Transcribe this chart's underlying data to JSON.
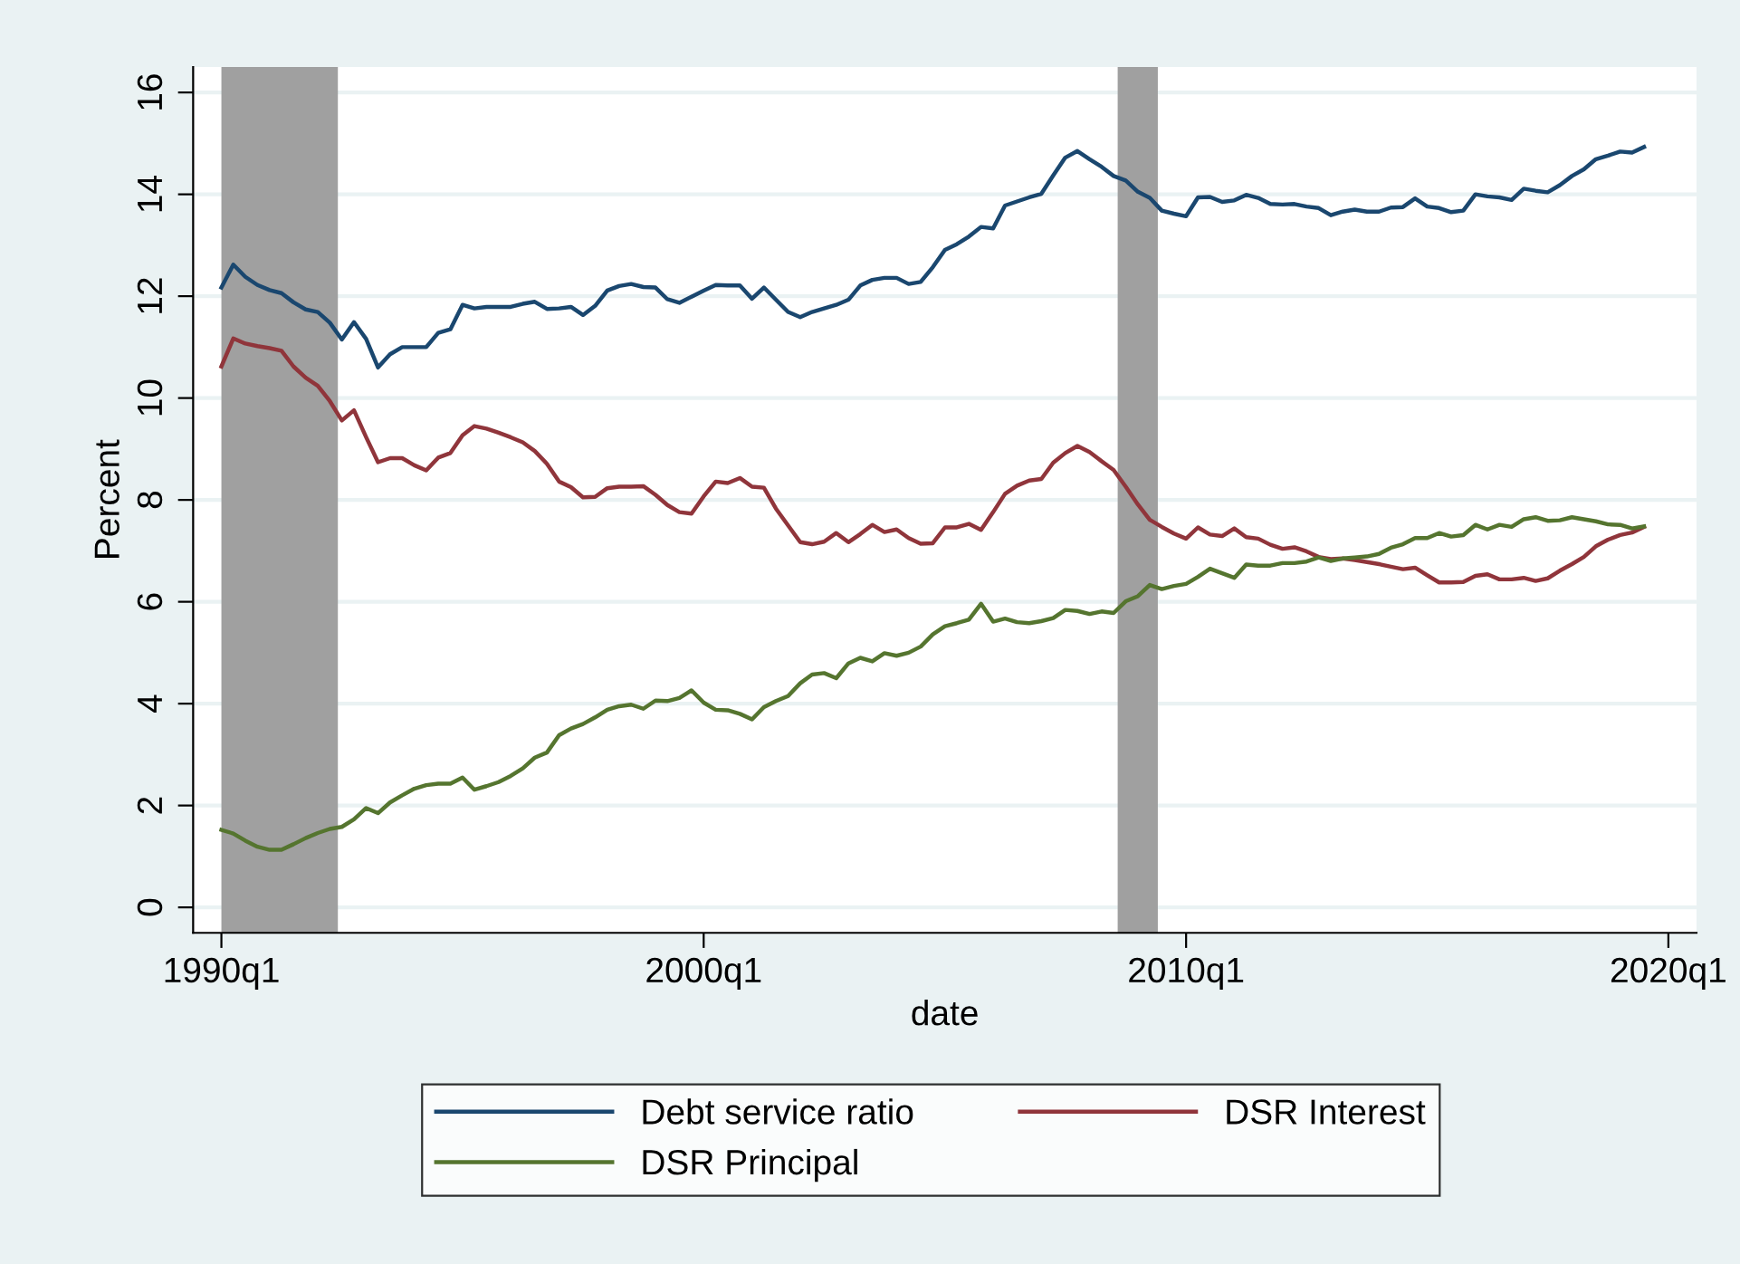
{
  "chart_data": {
    "type": "line",
    "xlabel": "date",
    "ylabel": "Percent",
    "x": [
      "1990-01",
      "1990-04",
      "1990-07",
      "1990-10",
      "1991-01",
      "1991-04",
      "1991-07",
      "1991-10",
      "1992-01",
      "1992-04",
      "1992-07",
      "1992-10",
      "1993-01",
      "1993-04",
      "1993-07",
      "1993-10",
      "1994-01",
      "1994-04",
      "1994-07",
      "1994-10",
      "1995-01",
      "1995-04",
      "1995-07",
      "1995-10",
      "1996-01",
      "1996-04",
      "1996-07",
      "1996-10",
      "1997-01",
      "1997-04",
      "1997-07",
      "1997-10",
      "1998-01",
      "1998-04",
      "1998-07",
      "1998-10",
      "1999-01",
      "1999-04",
      "1999-07",
      "1999-10",
      "2000-01",
      "2000-04",
      "2000-07",
      "2000-10",
      "2001-01",
      "2001-04",
      "2001-07",
      "2001-10",
      "2002-01",
      "2002-04",
      "2002-07",
      "2002-10",
      "2003-01",
      "2003-04",
      "2003-07",
      "2003-10",
      "2004-01",
      "2004-04",
      "2004-07",
      "2004-10",
      "2005-01",
      "2005-04",
      "2005-07",
      "2005-10",
      "2006-01",
      "2006-04",
      "2006-07",
      "2006-10",
      "2007-01",
      "2007-04",
      "2007-07",
      "2007-10",
      "2008-01",
      "2008-04",
      "2008-07",
      "2008-10",
      "2009-01",
      "2009-04",
      "2009-07",
      "2009-10",
      "2010-01",
      "2010-04",
      "2010-07",
      "2010-10",
      "2011-01",
      "2011-04",
      "2011-07",
      "2011-10",
      "2012-01",
      "2012-04",
      "2012-07",
      "2012-10",
      "2013-01",
      "2013-04",
      "2013-07",
      "2013-10",
      "2014-01",
      "2014-04",
      "2014-07",
      "2014-10",
      "2015-01",
      "2015-04",
      "2015-07",
      "2015-10",
      "2016-01",
      "2016-04",
      "2016-07",
      "2016-10",
      "2017-01",
      "2017-04",
      "2017-07",
      "2017-10",
      "2018-01",
      "2018-04",
      "2018-07",
      "2018-10",
      "2019-01",
      "2019-04",
      "2019-07"
    ],
    "series": [
      {
        "name": "Debt service ratio",
        "color": "#1a476f",
        "values": [
          12.17,
          12.62,
          12.38,
          12.22,
          12.12,
          12.06,
          11.88,
          11.74,
          11.69,
          11.48,
          11.15,
          11.49,
          11.16,
          10.6,
          10.86,
          11.0,
          11.0,
          11.0,
          11.28,
          11.35,
          11.83,
          11.76,
          11.79,
          11.79,
          11.79,
          11.85,
          11.89,
          11.75,
          11.76,
          11.79,
          11.63,
          11.81,
          12.11,
          12.2,
          12.24,
          12.18,
          12.17,
          11.94,
          11.87,
          11.99,
          12.11,
          12.22,
          12.21,
          12.21,
          11.95,
          12.17,
          11.93,
          11.69,
          11.59,
          11.69,
          11.76,
          11.83,
          11.93,
          12.21,
          12.32,
          12.36,
          12.36,
          12.24,
          12.28,
          12.57,
          12.91,
          13.02,
          13.17,
          13.36,
          13.33,
          13.78,
          13.86,
          13.94,
          14.01,
          14.37,
          14.72,
          14.85,
          14.69,
          14.54,
          14.36,
          14.27,
          14.05,
          13.93,
          13.68,
          13.62,
          13.57,
          13.94,
          13.95,
          13.85,
          13.88,
          13.99,
          13.93,
          13.81,
          13.8,
          13.81,
          13.76,
          13.73,
          13.59,
          13.66,
          13.7,
          13.66,
          13.66,
          13.74,
          13.75,
          13.92,
          13.76,
          13.73,
          13.65,
          13.68,
          14.0,
          13.96,
          13.94,
          13.89,
          14.11,
          14.07,
          14.04,
          14.18,
          14.36,
          14.49,
          14.69,
          14.76,
          14.84,
          14.82,
          14.93
        ]
      },
      {
        "name": "DSR Interest",
        "color": "#90353b",
        "values": [
          10.62,
          11.17,
          11.07,
          11.02,
          10.98,
          10.93,
          10.62,
          10.4,
          10.24,
          9.94,
          9.56,
          9.76,
          9.23,
          8.74,
          8.82,
          8.82,
          8.68,
          8.58,
          8.83,
          8.92,
          9.27,
          9.45,
          9.4,
          9.32,
          9.23,
          9.13,
          8.96,
          8.71,
          8.36,
          8.25,
          8.05,
          8.06,
          8.23,
          8.26,
          8.26,
          8.27,
          8.1,
          7.9,
          7.76,
          7.73,
          8.07,
          8.36,
          8.33,
          8.43,
          8.26,
          8.24,
          7.83,
          7.5,
          7.17,
          7.13,
          7.18,
          7.35,
          7.17,
          7.33,
          7.51,
          7.37,
          7.42,
          7.25,
          7.14,
          7.15,
          7.46,
          7.46,
          7.53,
          7.41,
          7.76,
          8.12,
          8.28,
          8.38,
          8.41,
          8.73,
          8.92,
          9.06,
          8.94,
          8.76,
          8.59,
          8.26,
          7.91,
          7.61,
          7.47,
          7.34,
          7.24,
          7.46,
          7.32,
          7.29,
          7.44,
          7.27,
          7.24,
          7.12,
          7.04,
          7.07,
          6.99,
          6.88,
          6.84,
          6.85,
          6.82,
          6.78,
          6.74,
          6.69,
          6.64,
          6.67,
          6.52,
          6.38,
          6.38,
          6.39,
          6.51,
          6.54,
          6.44,
          6.44,
          6.47,
          6.41,
          6.46,
          6.61,
          6.74,
          6.88,
          7.09,
          7.22,
          7.31,
          7.36,
          7.47
        ]
      },
      {
        "name": "DSR Principal",
        "color": "#55752f",
        "values": [
          1.52,
          1.45,
          1.31,
          1.19,
          1.13,
          1.13,
          1.24,
          1.36,
          1.46,
          1.54,
          1.58,
          1.73,
          1.95,
          1.85,
          2.06,
          2.2,
          2.33,
          2.4,
          2.43,
          2.43,
          2.55,
          2.31,
          2.38,
          2.46,
          2.58,
          2.73,
          2.94,
          3.04,
          3.38,
          3.51,
          3.6,
          3.73,
          3.88,
          3.95,
          3.98,
          3.9,
          4.06,
          4.05,
          4.11,
          4.26,
          4.02,
          3.88,
          3.87,
          3.8,
          3.69,
          3.93,
          4.05,
          4.15,
          4.4,
          4.57,
          4.6,
          4.5,
          4.79,
          4.9,
          4.83,
          4.99,
          4.94,
          5.0,
          5.12,
          5.36,
          5.52,
          5.58,
          5.65,
          5.96,
          5.61,
          5.67,
          5.6,
          5.58,
          5.62,
          5.68,
          5.84,
          5.82,
          5.76,
          5.81,
          5.78,
          6.01,
          6.11,
          6.33,
          6.25,
          6.31,
          6.35,
          6.49,
          6.65,
          6.56,
          6.47,
          6.73,
          6.71,
          6.71,
          6.76,
          6.76,
          6.79,
          6.87,
          6.8,
          6.85,
          6.87,
          6.89,
          6.94,
          7.06,
          7.13,
          7.25,
          7.25,
          7.35,
          7.28,
          7.31,
          7.51,
          7.42,
          7.51,
          7.47,
          7.62,
          7.66,
          7.59,
          7.6,
          7.66,
          7.62,
          7.58,
          7.52,
          7.51,
          7.44,
          7.48
        ]
      }
    ],
    "bands": [
      {
        "axis": "x",
        "from": "1990-01",
        "to": "1992-06",
        "color": "#a0a0a0"
      },
      {
        "axis": "x",
        "from": "2008-08",
        "to": "2009-06",
        "color": "#a0a0a0"
      }
    ],
    "xlim": [
      "1989-06",
      "2020-08"
    ],
    "ylim": [
      -0.5,
      16.5
    ],
    "xticks": [
      {
        "value": "1990-01",
        "label": "1990q1"
      },
      {
        "value": "2000-01",
        "label": "2000q1"
      },
      {
        "value": "2010-01",
        "label": "2010q1"
      },
      {
        "value": "2020-01",
        "label": "2020q1"
      }
    ],
    "yticks": [
      0,
      2,
      4,
      6,
      8,
      10,
      12,
      14,
      16
    ],
    "grid": "y",
    "legend": "bottom",
    "marker": "none",
    "line_style": "solid"
  }
}
